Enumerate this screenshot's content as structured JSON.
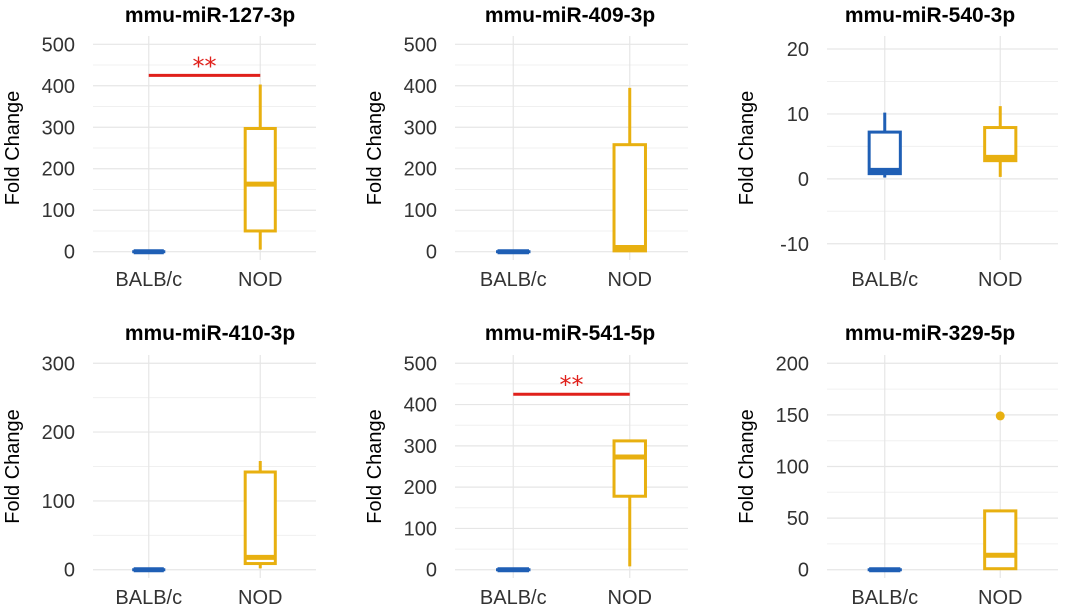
{
  "colors": {
    "balb": "#1f5fb5",
    "nod": "#e8b010",
    "sig": "#e0201b",
    "grid": "#e6e6e6"
  },
  "chart_data": [
    {
      "type": "boxplot",
      "title": "mmu-miR-127-3p",
      "xlabel": "",
      "ylabel": "Fold Change",
      "categories": [
        "BALB/c",
        "NOD"
      ],
      "ylim": [
        -20,
        520
      ],
      "yticks": [
        0,
        100,
        200,
        300,
        400,
        500
      ],
      "boxes": [
        {
          "group": "BALB/c",
          "whisker_low": 0,
          "q1": 0,
          "median": 0,
          "q3": 0,
          "whisker_high": 0,
          "outliers": []
        },
        {
          "group": "NOD",
          "whisker_low": 5,
          "q1": 50,
          "median": 163,
          "q3": 297,
          "whisker_high": 403,
          "outliers": []
        }
      ],
      "significance": {
        "label": "**",
        "y": 425
      }
    },
    {
      "type": "boxplot",
      "title": "mmu-miR-409-3p",
      "xlabel": "",
      "ylabel": "Fold Change",
      "categories": [
        "BALB/c",
        "NOD"
      ],
      "ylim": [
        -20,
        520
      ],
      "yticks": [
        0,
        100,
        200,
        300,
        400,
        500
      ],
      "boxes": [
        {
          "group": "BALB/c",
          "whisker_low": 0,
          "q1": 0,
          "median": 0,
          "q3": 0,
          "whisker_high": 0,
          "outliers": []
        },
        {
          "group": "NOD",
          "whisker_low": 0,
          "q1": 2,
          "median": 10,
          "q3": 258,
          "whisker_high": 395,
          "outliers": []
        }
      ]
    },
    {
      "type": "boxplot",
      "title": "mmu-miR-540-3p",
      "xlabel": "",
      "ylabel": "Fold Change",
      "categories": [
        "BALB/c",
        "NOD"
      ],
      "ylim": [
        -12.5,
        22
      ],
      "yticks": [
        -10,
        0,
        10,
        20
      ],
      "boxes": [
        {
          "group": "BALB/c",
          "whisker_low": 0.2,
          "q1": 0.8,
          "median": 1.3,
          "q3": 7.2,
          "whisker_high": 10.2,
          "outliers": []
        },
        {
          "group": "NOD",
          "whisker_low": 0.3,
          "q1": 2.8,
          "median": 3.3,
          "q3": 7.9,
          "whisker_high": 11.2,
          "outliers": []
        }
      ]
    },
    {
      "type": "boxplot",
      "title": "mmu-miR-410-3p",
      "xlabel": "",
      "ylabel": "Fold Change",
      "categories": [
        "BALB/c",
        "NOD"
      ],
      "ylim": [
        -12,
        312
      ],
      "yticks": [
        0,
        100,
        200,
        300
      ],
      "boxes": [
        {
          "group": "BALB/c",
          "whisker_low": 0,
          "q1": 0,
          "median": 0,
          "q3": 0,
          "whisker_high": 0,
          "outliers": []
        },
        {
          "group": "NOD",
          "whisker_low": 2,
          "q1": 9,
          "median": 18,
          "q3": 142,
          "whisker_high": 158,
          "outliers": []
        }
      ]
    },
    {
      "type": "boxplot",
      "title": "mmu-miR-541-5p",
      "xlabel": "",
      "ylabel": "Fold Change",
      "categories": [
        "BALB/c",
        "NOD"
      ],
      "ylim": [
        -20,
        520
      ],
      "yticks": [
        0,
        100,
        200,
        300,
        400,
        500
      ],
      "boxes": [
        {
          "group": "BALB/c",
          "whisker_low": 0,
          "q1": 0,
          "median": 0,
          "q3": 0,
          "whisker_high": 0,
          "outliers": []
        },
        {
          "group": "NOD",
          "whisker_low": 8,
          "q1": 178,
          "median": 273,
          "q3": 312,
          "whisker_high": 312,
          "outliers": []
        }
      ],
      "significance": {
        "label": "**",
        "y": 425
      }
    },
    {
      "type": "boxplot",
      "title": "mmu-miR-329-5p",
      "xlabel": "",
      "ylabel": "Fold Change",
      "categories": [
        "BALB/c",
        "NOD"
      ],
      "ylim": [
        -8,
        208
      ],
      "yticks": [
        0,
        50,
        100,
        150,
        200
      ],
      "boxes": [
        {
          "group": "BALB/c",
          "whisker_low": 0,
          "q1": 0,
          "median": 0,
          "q3": 0,
          "whisker_high": 0,
          "outliers": []
        },
        {
          "group": "NOD",
          "whisker_low": 0,
          "q1": 1,
          "median": 14,
          "q3": 57,
          "whisker_high": 57,
          "outliers": [
            149
          ]
        }
      ]
    }
  ]
}
